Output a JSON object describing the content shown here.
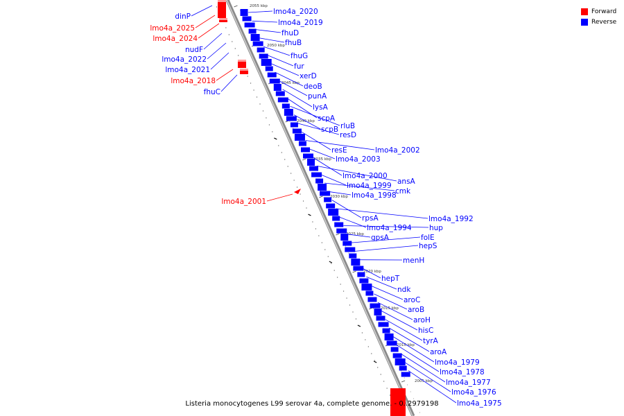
{
  "caption": "Listeria monocytogenes L99 serovar 4a, complete genome. - 0..2979198",
  "colors": {
    "forward": "#ff0000",
    "reverse": "#0000ff"
  },
  "legend": [
    {
      "label": "Forward",
      "strand": "forward"
    },
    {
      "label": "Reverse",
      "strand": "reverse"
    }
  ],
  "ticks": [
    "2055 kbp",
    "2050 kbp",
    "2045 kbp",
    "2040 kbp",
    "2035 kbp",
    "2030 kbp",
    "2025 kbp",
    "2020 kbp",
    "2015 kbp",
    "2010 kbp",
    "2005 kbp"
  ],
  "features_forward": [
    "dinP",
    "lmo4a_2025",
    "lmo4a_2024",
    "nudF",
    "lmo4a_2022",
    "lmo4a_2021",
    "lmo4a_2018",
    "fhuC",
    "lmo4a_2001"
  ],
  "forward_strand": [
    "",
    "forward",
    "forward",
    "",
    "",
    "",
    "forward",
    "",
    "forward"
  ],
  "features_reverse": [
    "lmo4a_2020",
    "lmo4a_2019",
    "fhuD",
    "fhuB",
    "fhuG",
    "fur",
    "xerD",
    "deoB",
    "punA",
    "lysA",
    "scpA",
    "rluB",
    "scpB",
    "resD",
    "resE",
    "lmo4a_2002",
    "lmo4a_2003",
    "lmo4a_2000",
    "ansA",
    "lmo4a_1999",
    "cmk",
    "lmo4a_1998",
    "rpsA",
    "lmo4a_1992",
    "lmo4a_1994",
    "hup",
    "gpsA",
    "folE",
    "hepS",
    "menH",
    "hepT",
    "ndk",
    "aroC",
    "aroB",
    "aroH",
    "hisC",
    "tyrA",
    "aroA",
    "lmo4a_1979",
    "lmo4a_1978",
    "lmo4a_1977",
    "lmo4a_1976",
    "lmo4a_1975"
  ]
}
